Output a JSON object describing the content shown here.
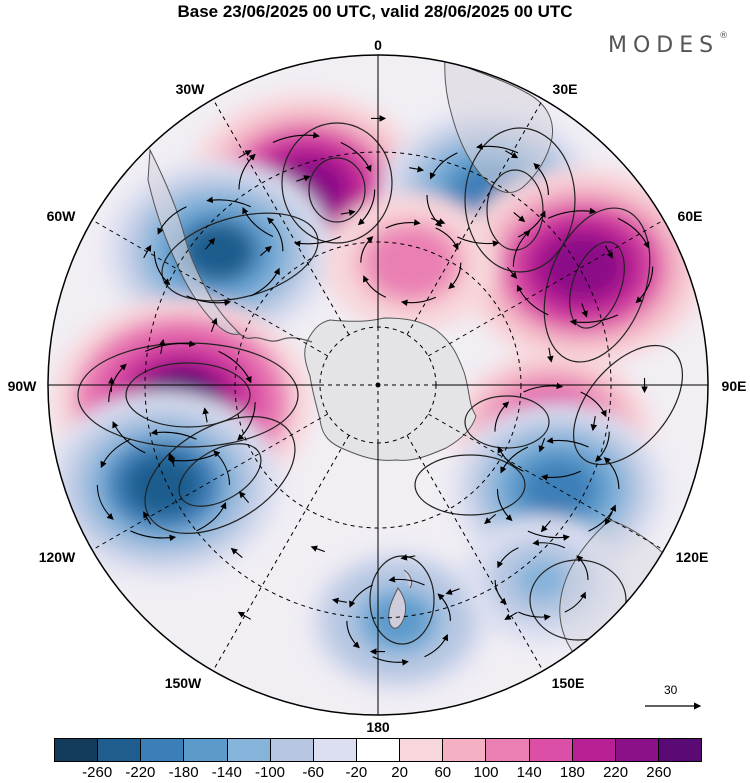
{
  "title": "Base 23/06/2025 00 UTC, valid 28/06/2025 00 UTC",
  "brand": "MODES",
  "brand_mark": "®",
  "map": {
    "projection": "south-polar-stereographic",
    "longitude_labels": {
      "lon_0": "0",
      "lon_30e": "30E",
      "lon_60e": "60E",
      "lon_90e": "90E",
      "lon_120e": "120E",
      "lon_150e": "150E",
      "lon_180": "180",
      "lon_150w": "150W",
      "lon_120w": "120W",
      "lon_90w": "90W",
      "lon_60w": "60W",
      "lon_30w": "30W"
    },
    "anomaly_centers": [
      {
        "lon": "20W",
        "lat": -50,
        "sign": "positive",
        "peak": 240
      },
      {
        "lon": "30E",
        "lat": -48,
        "sign": "negative",
        "peak": -200
      },
      {
        "lon": "60E",
        "lat": -45,
        "sign": "positive",
        "peak": 250
      },
      {
        "lon": "50W",
        "lat": -50,
        "sign": "negative",
        "peak": -220
      },
      {
        "lon": "95W",
        "lat": -52,
        "sign": "positive",
        "peak": 270
      },
      {
        "lon": "115W",
        "lat": -45,
        "sign": "negative",
        "peak": -230
      },
      {
        "lon": "105E",
        "lat": -55,
        "sign": "positive",
        "peak": 180
      },
      {
        "lon": "120E",
        "lat": -50,
        "sign": "negative",
        "peak": -200
      },
      {
        "lon": "175E",
        "lat": -45,
        "sign": "negative",
        "peak": -150
      },
      {
        "lon": "15E",
        "lat": -65,
        "sign": "positive",
        "peak": 140
      },
      {
        "lon": "140E",
        "lat": -42,
        "sign": "negative",
        "peak": -120
      }
    ]
  },
  "reference_vector": {
    "label": "30",
    "icon": "arrow-right-icon"
  },
  "colorbar": {
    "colors": [
      "#113a5b",
      "#1e5d8e",
      "#3c7fb8",
      "#5c9acb",
      "#86b3da",
      "#b7c7e2",
      "#dcdff0",
      "#ffffff",
      "#f8d7dc",
      "#f3b1c3",
      "#ea7fb4",
      "#dc4fa6",
      "#b81f93",
      "#8a1187",
      "#5a0a74"
    ],
    "tick_labels": [
      "-260",
      "-220",
      "-180",
      "-140",
      "-100",
      "-60",
      "-20",
      "20",
      "60",
      "100",
      "140",
      "180",
      "220",
      "260"
    ]
  }
}
